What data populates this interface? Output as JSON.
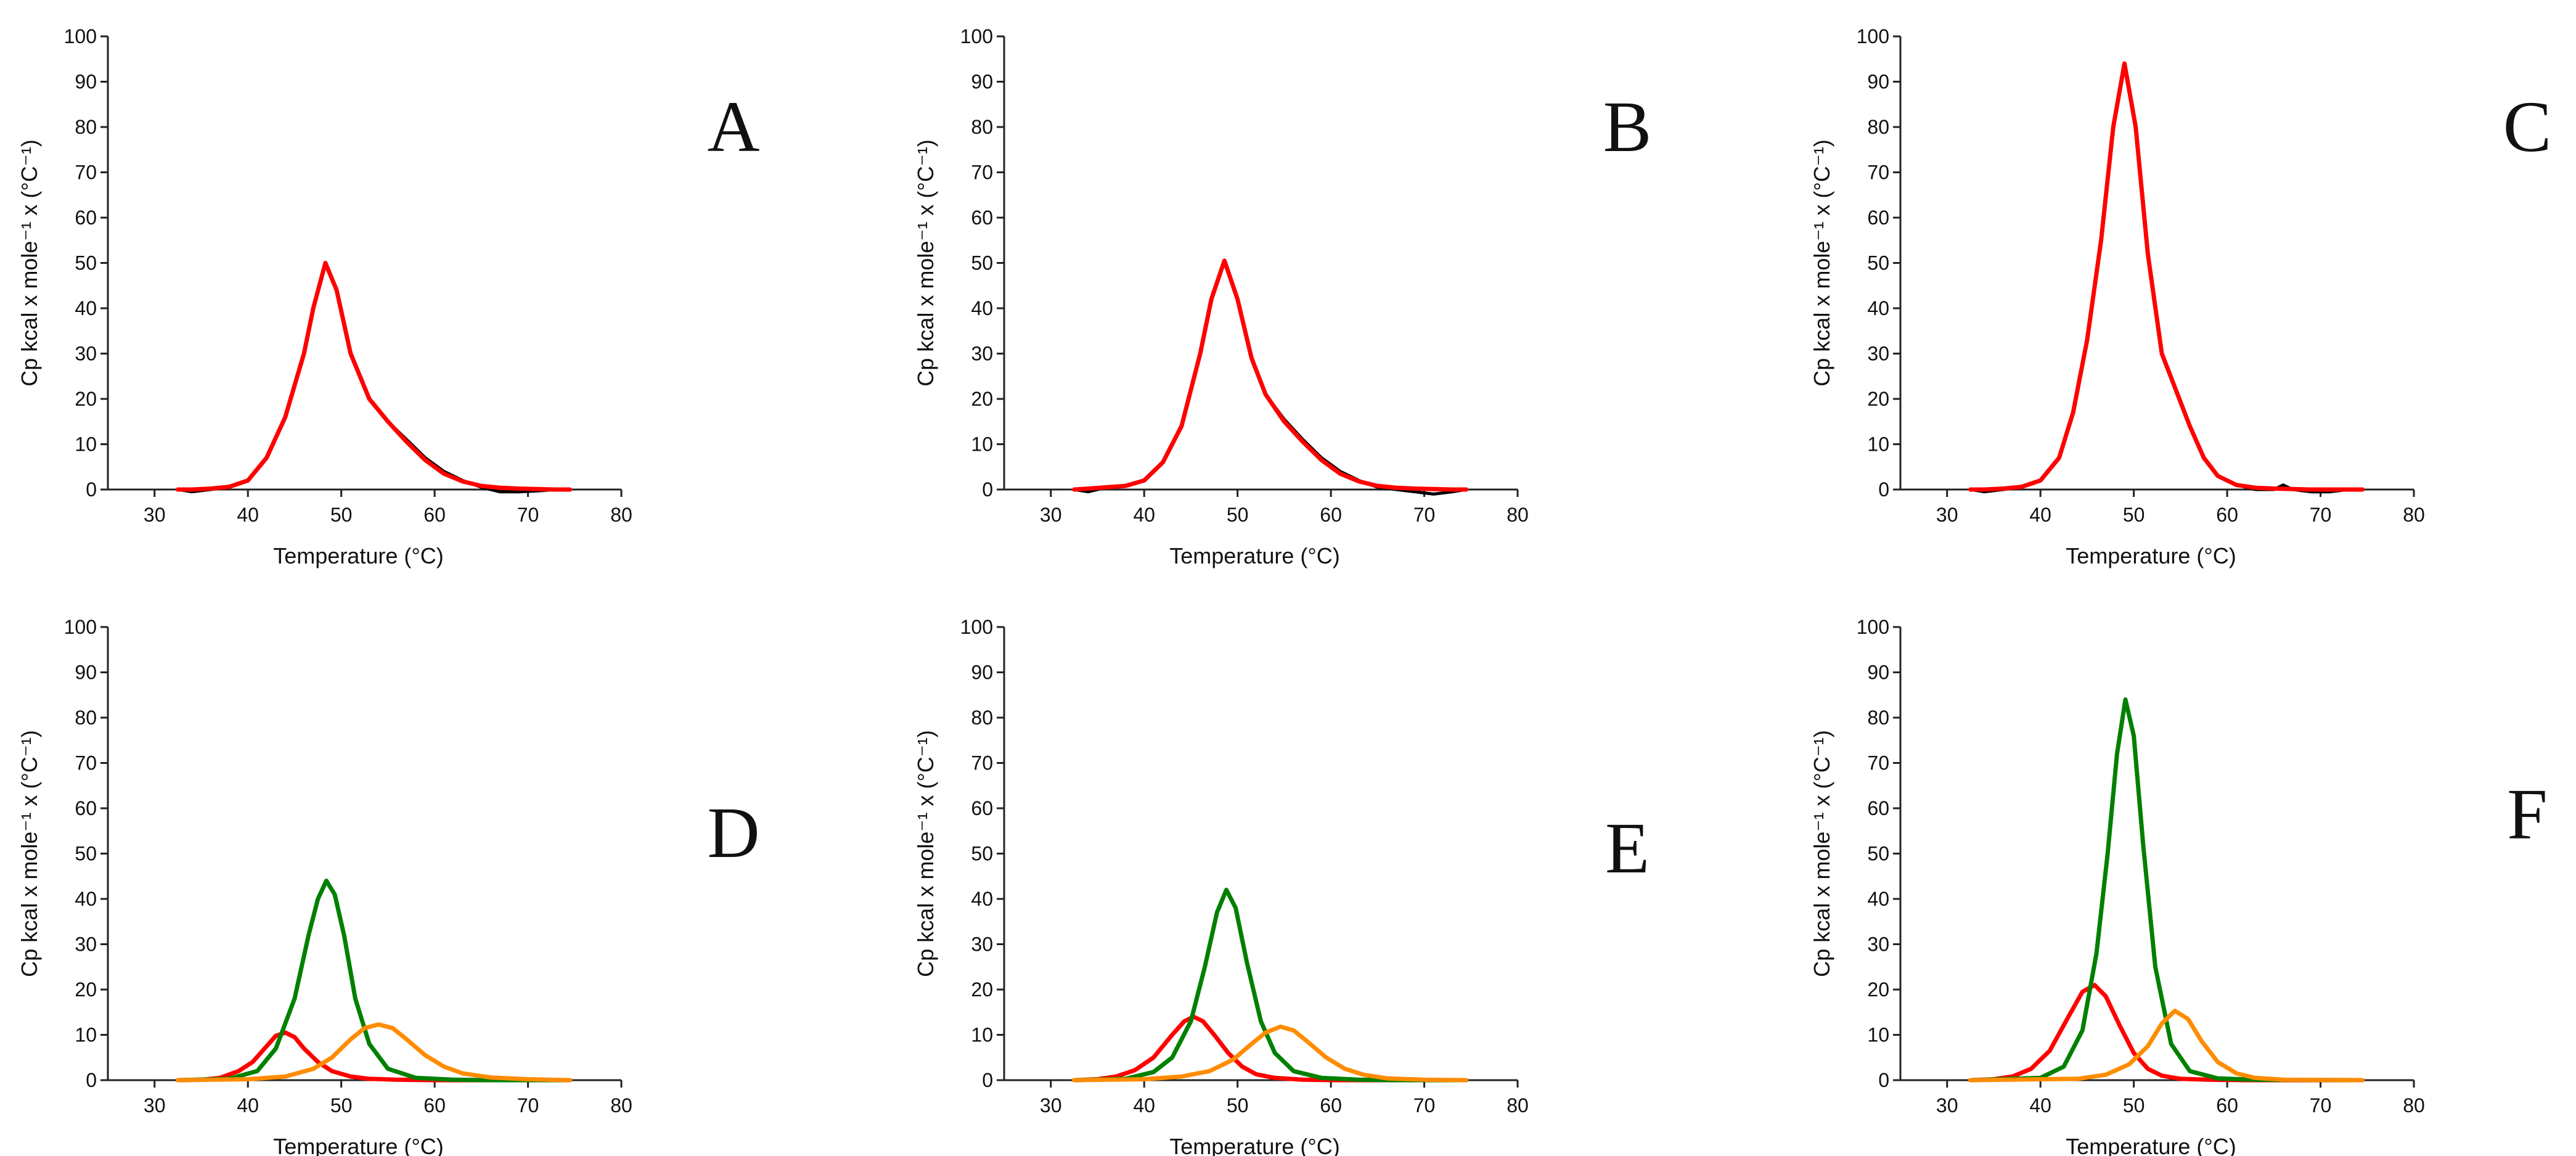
{
  "figure": {
    "panel_letters": [
      "A",
      "B",
      "C",
      "D",
      "E",
      "F"
    ]
  },
  "chart_data": [
    {
      "panel": "A",
      "type": "line",
      "xlabel": "Temperature (°C)",
      "ylabel": "Cp kcal x mole⁻¹ x (°C⁻¹)",
      "xlim": [
        25,
        80
      ],
      "ylim": [
        0,
        100
      ],
      "xticks": [
        30,
        40,
        50,
        60,
        70,
        80
      ],
      "yticks": [
        0,
        10,
        20,
        30,
        40,
        50,
        60,
        70,
        80,
        90,
        100
      ],
      "grid": false,
      "series": [
        {
          "color": "#000000",
          "width": 5,
          "x": [
            32.5,
            34,
            36,
            38,
            40,
            42,
            44,
            46,
            47,
            48.3,
            49.5,
            51,
            53,
            55,
            57,
            59,
            61,
            63,
            65,
            67,
            69,
            71,
            73,
            74.5
          ],
          "y": [
            0,
            -0.5,
            0,
            0.5,
            2,
            7,
            16,
            30,
            40,
            50,
            44,
            30,
            20,
            15,
            11,
            7,
            4,
            2,
            0.5,
            -0.5,
            -0.5,
            -0.3,
            0,
            0
          ]
        },
        {
          "color": "#ff0000",
          "width": 7,
          "x": [
            32.5,
            34,
            36,
            38,
            40,
            42,
            44,
            46,
            47,
            48.3,
            49.5,
            51,
            53,
            55,
            57,
            59,
            61,
            63,
            65,
            67,
            69,
            71,
            73,
            74.5
          ],
          "y": [
            0,
            0,
            0.2,
            0.6,
            2,
            7,
            16,
            30,
            40,
            50,
            44,
            30,
            20,
            15,
            10.5,
            6.5,
            3.5,
            1.8,
            0.8,
            0.4,
            0.2,
            0.1,
            0,
            0
          ]
        }
      ]
    },
    {
      "panel": "B",
      "type": "line",
      "xlabel": "Temperature (°C)",
      "ylabel": "Cp kcal x mole⁻¹ x (°C⁻¹)",
      "xlim": [
        25,
        80
      ],
      "ylim": [
        0,
        100
      ],
      "xticks": [
        30,
        40,
        50,
        60,
        70,
        80
      ],
      "yticks": [
        0,
        10,
        20,
        30,
        40,
        50,
        60,
        70,
        80,
        90,
        100
      ],
      "grid": false,
      "series": [
        {
          "color": "#000000",
          "width": 5,
          "x": [
            32.5,
            34,
            36,
            38,
            40,
            42,
            44,
            46,
            47.2,
            48.6,
            50,
            51.5,
            53,
            55,
            57,
            59,
            61,
            63,
            65,
            67,
            69,
            71,
            73,
            74.5
          ],
          "y": [
            0,
            -0.5,
            0.5,
            0.8,
            2,
            6,
            14,
            30,
            42,
            50.5,
            42,
            29,
            21,
            15.5,
            11,
            7,
            4,
            2,
            0.5,
            0,
            -0.5,
            -1,
            -0.5,
            0
          ]
        },
        {
          "color": "#ff0000",
          "width": 7,
          "x": [
            32.5,
            34,
            36,
            38,
            40,
            42,
            44,
            46,
            47.2,
            48.6,
            50,
            51.5,
            53,
            55,
            57,
            59,
            61,
            63,
            65,
            67,
            69,
            71,
            73,
            74.5
          ],
          "y": [
            0,
            0.2,
            0.5,
            0.8,
            2,
            6,
            14,
            30,
            42,
            50.5,
            42,
            29,
            21,
            15,
            10.5,
            6.5,
            3.5,
            1.8,
            0.8,
            0.4,
            0.2,
            0.1,
            0,
            0
          ]
        }
      ]
    },
    {
      "panel": "C",
      "type": "line",
      "xlabel": "Temperature (°C)",
      "ylabel": "Cp kcal x mole⁻¹ x (°C⁻¹)",
      "xlim": [
        25,
        80
      ],
      "ylim": [
        0,
        100
      ],
      "xticks": [
        30,
        40,
        50,
        60,
        70,
        80
      ],
      "yticks": [
        0,
        10,
        20,
        30,
        40,
        50,
        60,
        70,
        80,
        90,
        100
      ],
      "grid": false,
      "series": [
        {
          "color": "#000000",
          "width": 5,
          "x": [
            32.5,
            34,
            36,
            38,
            40,
            42,
            43.5,
            45,
            46.5,
            47.8,
            49,
            50.2,
            51.5,
            53,
            54.5,
            56,
            57.5,
            59,
            61,
            63,
            65,
            66,
            67,
            69,
            71,
            73,
            74.5
          ],
          "y": [
            0,
            -0.5,
            0,
            0.5,
            2,
            7,
            17,
            33,
            55,
            80,
            94,
            80,
            52,
            30,
            22,
            14,
            7,
            3,
            1,
            0,
            0,
            1,
            0,
            -0.5,
            -0.5,
            0,
            0
          ]
        },
        {
          "color": "#ff0000",
          "width": 7,
          "x": [
            32.5,
            34,
            36,
            38,
            40,
            42,
            43.5,
            45,
            46.5,
            47.8,
            49,
            50.2,
            51.5,
            53,
            54.5,
            56,
            57.5,
            59,
            61,
            63,
            65,
            67,
            69,
            71,
            73,
            74.5
          ],
          "y": [
            0,
            0,
            0.2,
            0.6,
            2,
            7,
            17,
            33,
            55,
            80,
            94,
            80,
            52,
            30,
            22,
            14,
            7,
            3,
            1,
            0.4,
            0.2,
            0.1,
            0,
            0,
            0,
            0
          ]
        }
      ]
    },
    {
      "panel": "D",
      "type": "line",
      "xlabel": "Temperature (°C)",
      "ylabel": "Cp kcal x mole⁻¹ x (°C⁻¹)",
      "xlim": [
        25,
        80
      ],
      "ylim": [
        0,
        100
      ],
      "xticks": [
        30,
        40,
        50,
        60,
        70,
        80
      ],
      "yticks": [
        0,
        10,
        20,
        30,
        40,
        50,
        60,
        70,
        80,
        90,
        100
      ],
      "grid": false,
      "series": [
        {
          "color": "#ff0000",
          "width": 7,
          "x": [
            32.5,
            35,
            37,
            39,
            40.5,
            42,
            43,
            44,
            45,
            46,
            47.5,
            49,
            51,
            53,
            56,
            60,
            65,
            74.5
          ],
          "y": [
            0,
            0.1,
            0.5,
            2,
            4,
            7.5,
            9.8,
            10.5,
            9.5,
            7,
            4,
            2,
            0.8,
            0.3,
            0.1,
            0,
            0,
            0
          ]
        },
        {
          "color": "#008000",
          "width": 7,
          "x": [
            32.5,
            38,
            41,
            43,
            45,
            46.5,
            47.5,
            48.4,
            49.3,
            50.3,
            51.5,
            53,
            55,
            58,
            62,
            66,
            74.5
          ],
          "y": [
            0,
            0.3,
            2,
            7,
            18,
            32,
            40,
            44,
            41,
            32,
            18,
            8,
            2.5,
            0.5,
            0.1,
            0,
            0
          ]
        },
        {
          "color": "#ff8c00",
          "width": 7,
          "x": [
            32.5,
            40,
            44,
            47,
            49,
            51,
            52.5,
            54,
            55.5,
            57,
            59,
            61,
            63,
            66,
            70,
            74.5
          ],
          "y": [
            0,
            0.2,
            0.8,
            2.5,
            5,
            9,
            11.5,
            12.3,
            11.5,
            9,
            5.5,
            3,
            1.5,
            0.6,
            0.2,
            0
          ]
        }
      ]
    },
    {
      "panel": "E",
      "type": "line",
      "xlabel": "Temperature (°C)",
      "ylabel": "Cp kcal x mole⁻¹ x (°C⁻¹)",
      "xlim": [
        25,
        80
      ],
      "ylim": [
        0,
        100
      ],
      "xticks": [
        30,
        40,
        50,
        60,
        70,
        80
      ],
      "yticks": [
        0,
        10,
        20,
        30,
        40,
        50,
        60,
        70,
        80,
        90,
        100
      ],
      "grid": false,
      "series": [
        {
          "color": "#ff0000",
          "width": 7,
          "x": [
            32.5,
            35,
            37,
            39,
            41,
            43,
            44.3,
            45.3,
            46.3,
            47.5,
            49,
            50.5,
            52,
            54,
            57,
            61,
            66,
            74.5
          ],
          "y": [
            0,
            0.2,
            0.8,
            2.2,
            5,
            10,
            13,
            14,
            13,
            10,
            6,
            3,
            1.3,
            0.5,
            0.1,
            0,
            0,
            0
          ]
        },
        {
          "color": "#008000",
          "width": 7,
          "x": [
            32.5,
            38,
            41,
            43,
            45,
            46.5,
            47.8,
            48.8,
            49.8,
            51,
            52.5,
            54,
            56,
            59,
            63,
            67,
            74.5
          ],
          "y": [
            0,
            0.3,
            1.8,
            5,
            13,
            25,
            37,
            42,
            38,
            26,
            13,
            6,
            2,
            0.5,
            0.1,
            0,
            0
          ]
        },
        {
          "color": "#ff8c00",
          "width": 7,
          "x": [
            32.5,
            40,
            44,
            47,
            49.5,
            51.5,
            53,
            54.6,
            56,
            57.5,
            59.5,
            61.5,
            63.5,
            66,
            70,
            74.5
          ],
          "y": [
            0,
            0.2,
            0.8,
            2,
            4.5,
            8,
            10.5,
            11.8,
            11,
            8.5,
            5,
            2.5,
            1.2,
            0.4,
            0.1,
            0
          ]
        }
      ]
    },
    {
      "panel": "F",
      "type": "line",
      "xlabel": "Temperature (°C)",
      "ylabel": "Cp kcal x mole⁻¹ x (°C⁻¹)",
      "xlim": [
        25,
        80
      ],
      "ylim": [
        0,
        100
      ],
      "xticks": [
        30,
        40,
        50,
        60,
        70,
        80
      ],
      "yticks": [
        0,
        10,
        20,
        30,
        40,
        50,
        60,
        70,
        80,
        90,
        100
      ],
      "grid": false,
      "series": [
        {
          "color": "#ff0000",
          "width": 7,
          "x": [
            32.5,
            35,
            37,
            39,
            41,
            43,
            44.5,
            45.8,
            47,
            48.5,
            50,
            51.5,
            53,
            55,
            58,
            62,
            74.5
          ],
          "y": [
            0,
            0.2,
            0.8,
            2.5,
            6.5,
            14,
            19.5,
            21,
            18.5,
            12,
            6,
            2.5,
            1,
            0.3,
            0.1,
            0,
            0
          ]
        },
        {
          "color": "#008000",
          "width": 7,
          "x": [
            32.5,
            40,
            42.5,
            44.5,
            46,
            47.2,
            48.2,
            49.1,
            50,
            51,
            52.3,
            54,
            56,
            59,
            63,
            74.5
          ],
          "y": [
            0,
            0.5,
            3,
            11,
            28,
            50,
            72,
            84,
            76,
            52,
            25,
            8,
            2,
            0.4,
            0.1,
            0
          ]
        },
        {
          "color": "#ff8c00",
          "width": 7,
          "x": [
            32.5,
            44,
            47,
            49.5,
            51.5,
            53,
            54.4,
            55.8,
            57.3,
            59,
            61,
            63,
            66,
            74.5
          ],
          "y": [
            0,
            0.3,
            1.2,
            3.5,
            7.5,
            12.5,
            15.3,
            13.5,
            8.5,
            4,
            1.5,
            0.5,
            0.1,
            0
          ]
        }
      ]
    }
  ]
}
